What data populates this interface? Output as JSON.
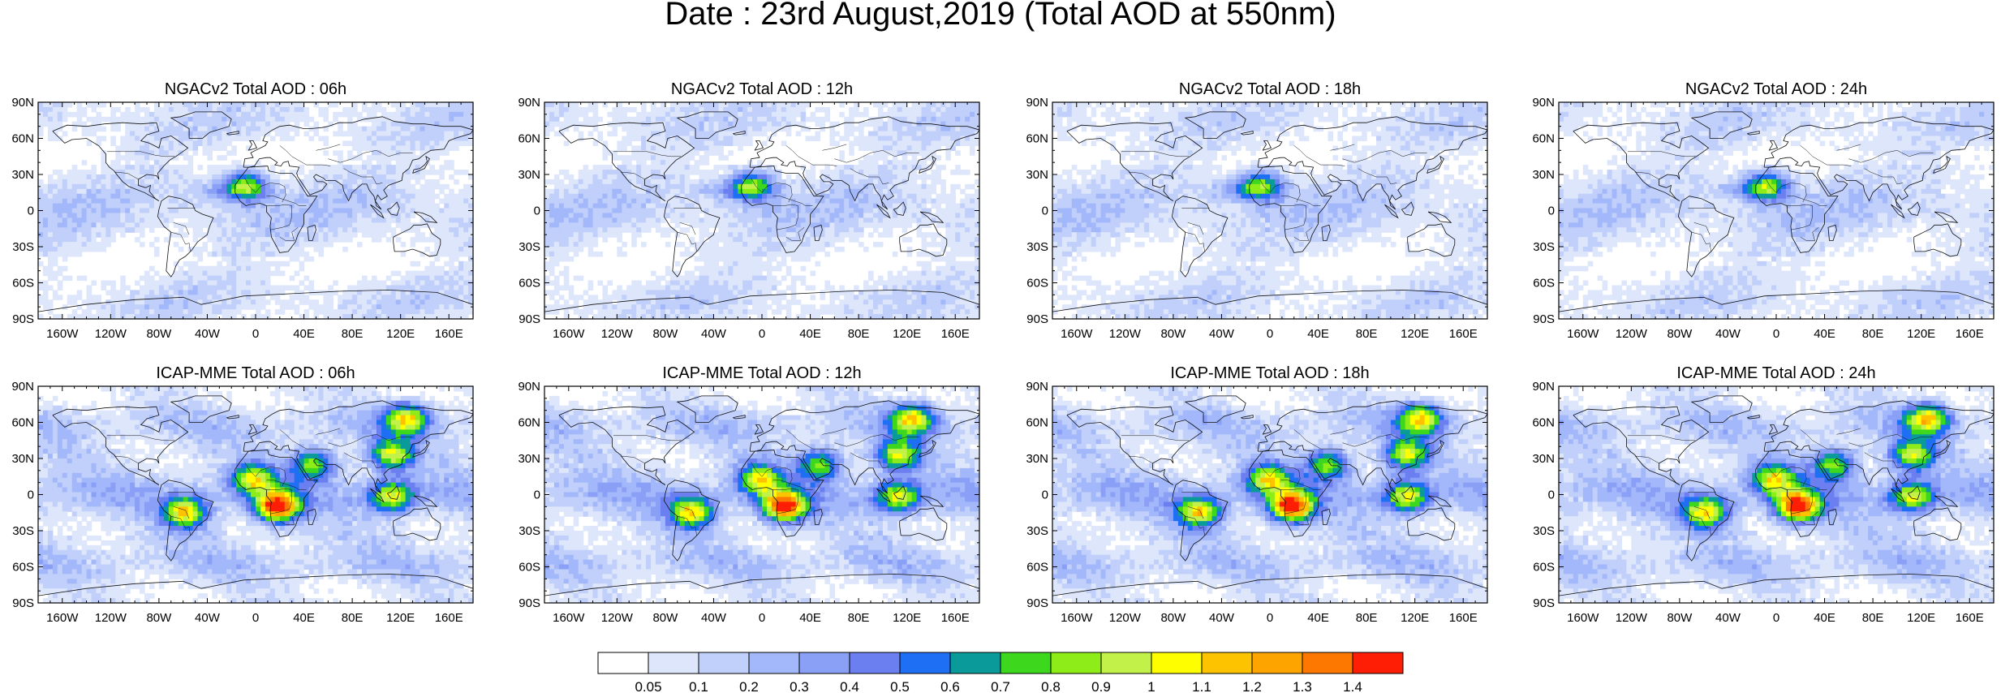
{
  "title": "Date : 23rd August,2019 (Total AOD at 550nm)",
  "rows": [
    {
      "panels": [
        {
          "title": "NGACv2 Total AOD : 06h",
          "kind": "ngac",
          "seed": 11
        },
        {
          "title": "NGACv2 Total AOD : 12h",
          "kind": "ngac",
          "seed": 12
        },
        {
          "title": "NGACv2 Total AOD : 18h",
          "kind": "ngac",
          "seed": 13
        },
        {
          "title": "NGACv2 Total AOD : 24h",
          "kind": "ngac",
          "seed": 14
        }
      ]
    },
    {
      "panels": [
        {
          "title": "ICAP-MME Total AOD : 06h",
          "kind": "icap",
          "seed": 21
        },
        {
          "title": "ICAP-MME Total AOD : 12h",
          "kind": "icap",
          "seed": 22
        },
        {
          "title": "ICAP-MME Total AOD : 18h",
          "kind": "icap",
          "seed": 23
        },
        {
          "title": "ICAP-MME Total AOD : 24h",
          "kind": "icap",
          "seed": 24
        }
      ]
    }
  ],
  "lat_ticks": [
    "90N",
    "60N",
    "30N",
    "0",
    "30S",
    "60S",
    "90S"
  ],
  "lon_ticks": [
    "160W",
    "120W",
    "80W",
    "40W",
    "0",
    "40E",
    "80E",
    "120E",
    "160E"
  ],
  "colorbar": {
    "colors": [
      "#ffffff",
      "#dde6fb",
      "#c1cffb",
      "#a3b8fa",
      "#8a9ff6",
      "#6c7ff0",
      "#1f6ff4",
      "#0b9a9a",
      "#3dd81e",
      "#8eec19",
      "#c2f24a",
      "#fffe00",
      "#fdc200",
      "#fda400",
      "#fd7800",
      "#fd1e05"
    ],
    "labels": [
      "0.05",
      "0.1",
      "0.2",
      "0.3",
      "0.4",
      "0.5",
      "0.6",
      "0.7",
      "0.8",
      "0.9",
      "1",
      "1.1",
      "1.2",
      "1.3",
      "1.4"
    ]
  },
  "hotspots": {
    "ngac": [
      {
        "name": "sahara-dust",
        "lon": -8,
        "lat": 21,
        "level": 8
      }
    ],
    "icap": [
      {
        "name": "central-africa-fires",
        "lon": 18,
        "lat": -10,
        "level": 14
      },
      {
        "name": "south-america-fires",
        "lon": -58,
        "lat": -15,
        "level": 10
      },
      {
        "name": "siberia-fires",
        "lon": 125,
        "lat": 63,
        "level": 10
      },
      {
        "name": "east-asia",
        "lon": 113,
        "lat": 33,
        "level": 9
      },
      {
        "name": "indonesia",
        "lon": 113,
        "lat": -2,
        "level": 9
      },
      {
        "name": "arabia",
        "lon": 48,
        "lat": 25,
        "level": 8
      },
      {
        "name": "west-africa",
        "lon": -2,
        "lat": 13,
        "level": 9
      }
    ]
  }
}
